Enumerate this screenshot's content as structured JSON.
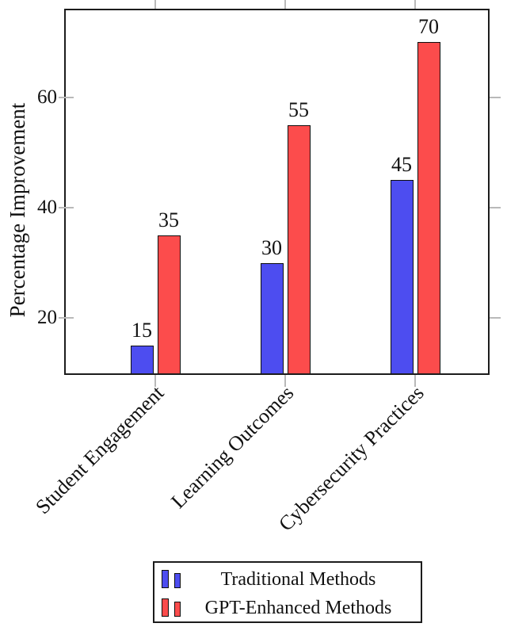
{
  "chart_data": {
    "type": "bar",
    "title": "",
    "ylabel": "Percentage Improvement",
    "xlabel": "",
    "categories": [
      "Student Engagement",
      "Learning Outcomes",
      "Cybersecurity Practices"
    ],
    "series": [
      {
        "name": "Traditional Methods",
        "color": "#4D4DF0",
        "values": [
          15,
          30,
          45
        ]
      },
      {
        "name": "GPT-Enhanced Methods",
        "color": "#FC4C4C",
        "values": [
          35,
          55,
          70
        ]
      }
    ],
    "yticks": [
      20,
      40,
      60
    ],
    "ylim": [
      9.7,
      75.9
    ],
    "bar_value_labels": [
      [
        "15",
        "30",
        "45"
      ],
      [
        "35",
        "55",
        "70"
      ]
    ],
    "grid": false,
    "legend_position": "below-plot-boxed",
    "x_tick_label_rotation_deg": 45
  }
}
